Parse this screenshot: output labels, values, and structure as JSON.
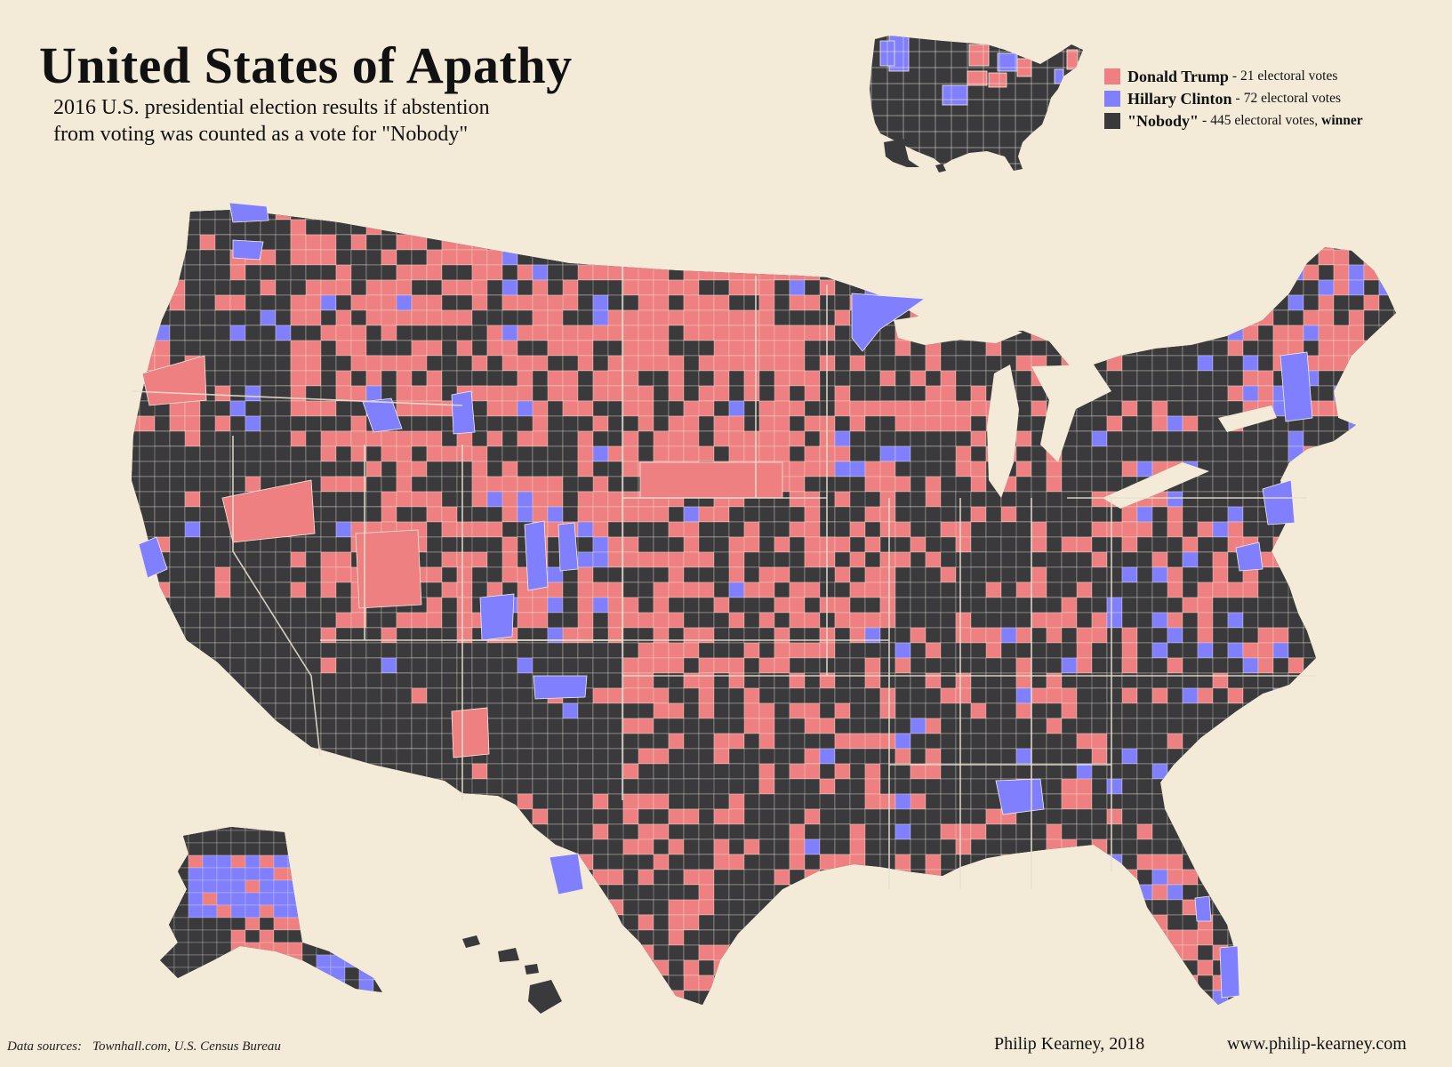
{
  "title": "United States of Apathy",
  "subtitle_line1": "2016 U.S. presidential election results if abstention",
  "subtitle_line2": "from voting was counted as a vote for \"Nobody\"",
  "colors": {
    "background": "#f3ead8",
    "trump": "#ee8081",
    "clinton": "#8080ff",
    "nobody": "#3a3a3c",
    "border": "#f4ece0"
  },
  "legend": [
    {
      "name": "Donald Trump",
      "separator": "-",
      "detail": "21 electoral votes",
      "suffix": "",
      "color_key": "trump"
    },
    {
      "name": "Hillary Clinton",
      "separator": "-",
      "detail": "72 electoral votes",
      "suffix": "",
      "color_key": "clinton"
    },
    {
      "name": "\"Nobody\"",
      "separator": "-",
      "detail": "445 electoral votes,",
      "suffix": "winner",
      "color_key": "nobody"
    }
  ],
  "footer": {
    "sources_label": "Data sources:",
    "sources": "Townhall.com, U.S. Census Bureau",
    "author": "Philip Kearney, 2018",
    "url": "www.philip-kearney.com"
  },
  "map": {
    "main_map_label": "contiguous-us-county-map",
    "inset_label": "state-results-inset-map",
    "alaska_label": "alaska-map",
    "hawaii_label": "hawaii-map"
  }
}
